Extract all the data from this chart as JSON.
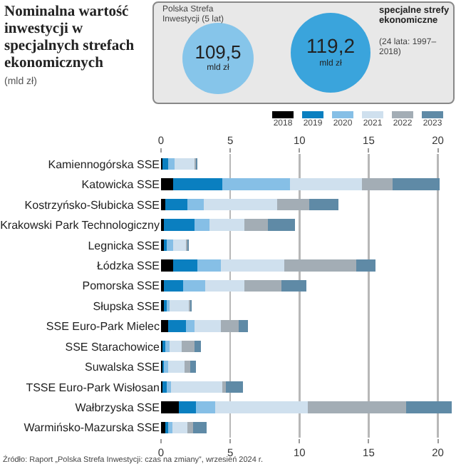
{
  "chart_data": {
    "type": "bar",
    "orientation": "horizontal",
    "stacked": true,
    "title": "Nominalna wartość inwestycji w specjalnych strefach ekonomicznych",
    "subtitle": "(mld zł)",
    "annotations": [
      "Polska Strefa Inwestycji (5 lat)",
      "109,5",
      "mld zł",
      "specjalne strefy ekonomiczne",
      "(24 lata: 1997–2018)",
      "119,2",
      "mld zł",
      "Źródło: Raport „Polska Strefa Inwestycji: czas na zmiany”, wrzesień 2024 r."
    ],
    "categories": [
      "Kamiennogórska SSE",
      "Katowicka SSE",
      "Kostrzyńsko-Słubicka SSE",
      "Krakowski Park Technologiczny",
      "Legnicka SSE",
      "Łódzka SSE",
      "Pomorska SSE",
      "Słupska SSE",
      "SSE Euro-Park Mielec",
      "SSE Starachowice",
      "Suwalska SSE",
      "TSSE Euro-Park Wisłosan",
      "Wałbrzyska SSE",
      "Warmińsko-Mazurska SSE"
    ],
    "series": [
      {
        "name": "2018",
        "color": "#000000",
        "values": [
          0.1,
          0.9,
          0.3,
          0.2,
          0.2,
          0.9,
          0.2,
          0.2,
          0.5,
          0.1,
          0.1,
          0.1,
          1.3,
          0.3
        ]
      },
      {
        "name": "2019",
        "color": "#0a7fc0",
        "values": [
          0.4,
          3.5,
          1.6,
          2.2,
          0.2,
          1.7,
          1.4,
          0.2,
          1.3,
          0.2,
          0.1,
          0.3,
          1.2,
          0.2
        ]
      },
      {
        "name": "2020",
        "color": "#86bfe6",
        "values": [
          0.5,
          4.9,
          1.2,
          1.1,
          0.5,
          1.7,
          1.6,
          0.2,
          0.6,
          0.3,
          0.3,
          0.3,
          1.4,
          0.3
        ]
      },
      {
        "name": "2021",
        "color": "#cfe0ee",
        "values": [
          1.4,
          5.2,
          5.3,
          2.5,
          0.9,
          4.6,
          2.8,
          1.4,
          1.9,
          0.9,
          1.2,
          3.7,
          6.7,
          1.1
        ]
      },
      {
        "name": "2022",
        "color": "#a3adb5",
        "values": [
          0.1,
          2.2,
          2.3,
          1.7,
          0.1,
          5.2,
          2.7,
          0.1,
          1.3,
          0.9,
          0.4,
          0.3,
          7.1,
          0.4
        ]
      },
      {
        "name": "2023",
        "color": "#5f8aa6",
        "values": [
          0.1,
          3.4,
          2.1,
          2.0,
          0.1,
          1.4,
          1.8,
          0.1,
          0.7,
          0.5,
          0.4,
          1.2,
          3.3,
          1.0
        ]
      }
    ],
    "xlim": [
      0,
      21.1
    ],
    "xticks": [
      0,
      5,
      10,
      15,
      20
    ],
    "x2lim": [
      0,
      21.1
    ],
    "x2ticks": [
      0,
      5,
      10,
      15,
      20
    ],
    "grid": "x",
    "legend": "top right"
  }
}
